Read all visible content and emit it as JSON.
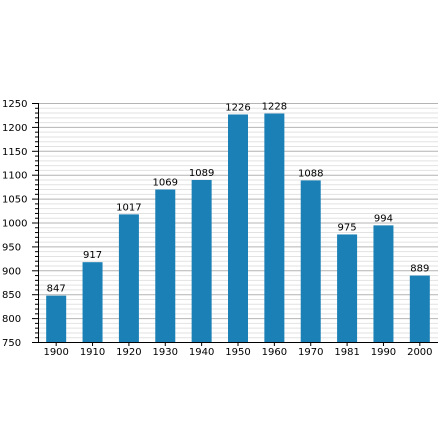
{
  "chart_data": {
    "type": "bar",
    "categories": [
      "1900",
      "1910",
      "1920",
      "1930",
      "1940",
      "1950",
      "1960",
      "1970",
      "1981",
      "1990",
      "2000"
    ],
    "values": [
      847,
      917,
      1017,
      1069,
      1089,
      1226,
      1228,
      1088,
      975,
      994,
      889
    ],
    "data_labels": [
      "847",
      "917",
      "1017",
      "1069",
      "1089",
      "1226",
      "1228",
      "1088",
      "975",
      "994",
      "889"
    ],
    "y_ticks": [
      "750",
      "800",
      "850",
      "900",
      "950",
      "1000",
      "1050",
      "1100",
      "1150",
      "1200",
      "1250"
    ],
    "title": "",
    "xlabel": "",
    "ylabel": "",
    "ylim": [
      750,
      1250
    ],
    "major_tick_step": 50,
    "minor_tick_step": 10,
    "grid": true,
    "legend": "none",
    "colors": {
      "bar": "#1a80b6",
      "major_grid": "#b4b4b4",
      "minor_grid": "#e2e2e2",
      "axis": "#000000",
      "text": "#000000"
    }
  }
}
